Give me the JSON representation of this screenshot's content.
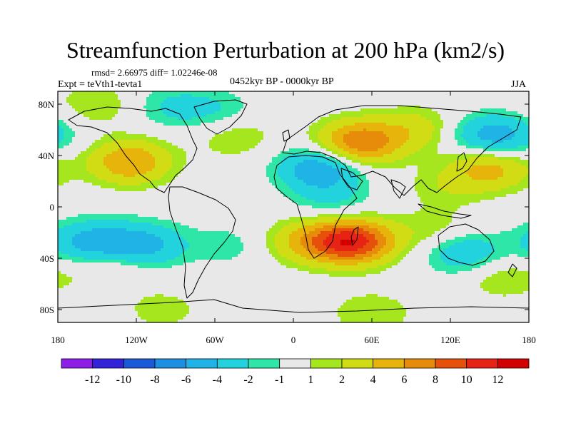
{
  "header": {
    "title": "Streamfunction Perturbation at 200 hPa (km2/s)",
    "stats": "rmsd= 2.66975 diff= 1.02246e-08",
    "experiment": "Expt = teVth1-tevta1",
    "period": "0452kyr BP - 0000kyr BP",
    "season": "JJA"
  },
  "chart_data": {
    "type": "heatmap",
    "title": "Streamfunction Perturbation at 200 hPa (km2/s)",
    "subtitle": "0452kyr BP - 0000kyr BP",
    "projection": "cylindrical equidistant",
    "xlabel": "",
    "ylabel": "",
    "xlim": [
      -180,
      180
    ],
    "ylim": [
      -90,
      90
    ],
    "x_ticks": [
      {
        "value": -180,
        "label": "180"
      },
      {
        "value": -120,
        "label": "120W"
      },
      {
        "value": -60,
        "label": "60W"
      },
      {
        "value": 0,
        "label": "0"
      },
      {
        "value": 60,
        "label": "60E"
      },
      {
        "value": 120,
        "label": "120E"
      },
      {
        "value": 180,
        "label": "180"
      }
    ],
    "y_ticks": [
      {
        "value": 80,
        "label": "80N"
      },
      {
        "value": 40,
        "label": "40N"
      },
      {
        "value": 0,
        "label": "0"
      },
      {
        "value": -40,
        "label": "40S"
      },
      {
        "value": -80,
        "label": "80S"
      }
    ],
    "colorbar": {
      "levels": [
        -12,
        -10,
        -8,
        -6,
        -4,
        -2,
        -1,
        1,
        2,
        4,
        6,
        8,
        10,
        12
      ],
      "level_labels": [
        "-12",
        "-10",
        "-8",
        "-6",
        "-4",
        "-2",
        "-1",
        "1",
        "2",
        "4",
        "6",
        "8",
        "10",
        "12"
      ],
      "colors": [
        "#8c1ee8",
        "#3223d8",
        "#1a5ad8",
        "#1e8fe0",
        "#20b4e6",
        "#22d2dc",
        "#2de6a8",
        "#e8e8e8",
        "#a6e61e",
        "#d2dc14",
        "#e6b40a",
        "#e68c0a",
        "#e6500a",
        "#e62314",
        "#d20000"
      ]
    },
    "anomaly_centers": [
      {
        "lon": -125,
        "lat": 35,
        "value": 6
      },
      {
        "lon": -155,
        "lat": -28,
        "value": -5
      },
      {
        "lon": -115,
        "lat": -30,
        "value": -5
      },
      {
        "lon": -95,
        "lat": 78,
        "value": -2
      },
      {
        "lon": -60,
        "lat": 75,
        "value": -2
      },
      {
        "lon": 20,
        "lat": 30,
        "value": -6
      },
      {
        "lon": 30,
        "lat": 5,
        "value": -2
      },
      {
        "lon": 45,
        "lat": -27,
        "value": 11
      },
      {
        "lon": 10,
        "lat": -27,
        "value": 4
      },
      {
        "lon": 50,
        "lat": 50,
        "value": 8
      },
      {
        "lon": 95,
        "lat": 60,
        "value": 3
      },
      {
        "lon": 150,
        "lat": 30,
        "value": 5
      },
      {
        "lon": 160,
        "lat": 55,
        "value": -4
      },
      {
        "lon": 140,
        "lat": 55,
        "value": -2
      },
      {
        "lon": 130,
        "lat": -35,
        "value": -4
      },
      {
        "lon": 115,
        "lat": 15,
        "value": 1.5
      },
      {
        "lon": 110,
        "lat": -20,
        "value": 2
      },
      {
        "lon": -50,
        "lat": -30,
        "value": -1.5
      },
      {
        "lon": -45,
        "lat": 55,
        "value": 2
      },
      {
        "lon": -150,
        "lat": 80,
        "value": 2
      },
      {
        "lon": 60,
        "lat": -83,
        "value": 2
      },
      {
        "lon": -100,
        "lat": -80,
        "value": 1.5
      },
      {
        "lon": -140,
        "lat": -45,
        "value": 2
      },
      {
        "lon": 160,
        "lat": -55,
        "value": 2
      }
    ]
  }
}
